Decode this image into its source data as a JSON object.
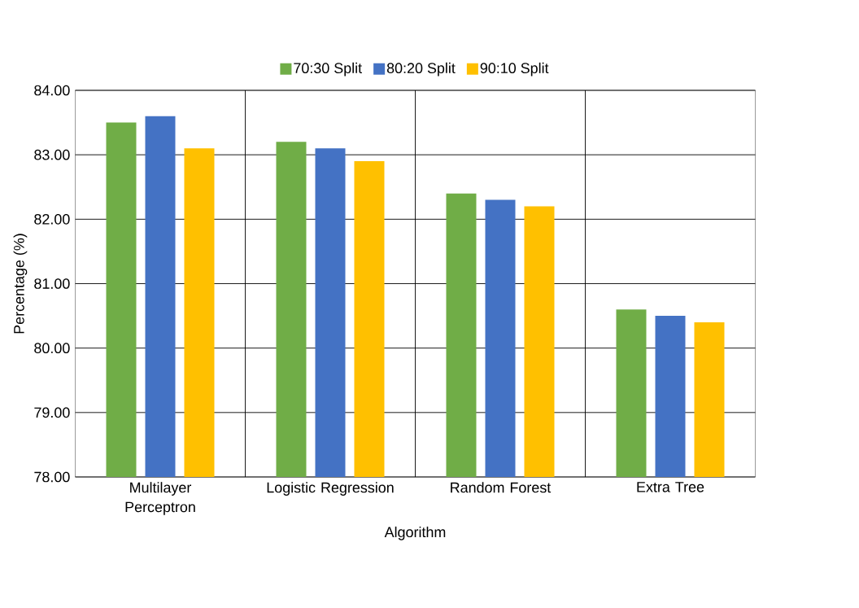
{
  "chart_data": {
    "type": "bar",
    "xlabel": "Algorithm",
    "ylabel": "Percentage (%)",
    "categories": [
      "Multilayer Perceptron",
      "Logistic Regression",
      "Random Forest",
      "Extra Tree"
    ],
    "series": [
      {
        "name": "70:30 Split",
        "color": "#70ad47",
        "values": [
          83.5,
          83.2,
          82.4,
          80.6
        ]
      },
      {
        "name": "80:20 Split",
        "color": "#4472c4",
        "values": [
          83.6,
          83.1,
          82.3,
          80.5
        ]
      },
      {
        "name": "90:10 Split",
        "color": "#ffc000",
        "values": [
          83.1,
          82.9,
          82.2,
          80.4
        ]
      }
    ],
    "ylim": [
      78,
      84
    ],
    "yticks": [
      {
        "value": 78,
        "label": "78.00"
      },
      {
        "value": 79,
        "label": "79.00"
      },
      {
        "value": 80,
        "label": "80.00"
      },
      {
        "value": 81,
        "label": "81.00"
      },
      {
        "value": 82,
        "label": "82.00"
      },
      {
        "value": 83,
        "label": "83.00"
      },
      {
        "value": 84,
        "label": "84.00"
      }
    ],
    "grid": true,
    "legend": "top"
  }
}
